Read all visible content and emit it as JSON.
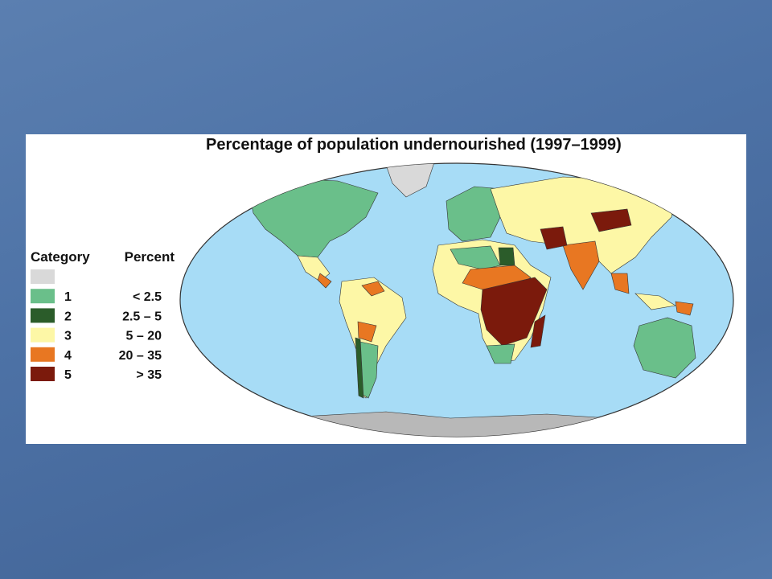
{
  "title": "Percentage of population undernourished (1997–1999)",
  "legend": {
    "headers": [
      "Category",
      "Percent"
    ],
    "items": [
      {
        "color": "#d9d9d9"
      },
      {
        "category": "1",
        "percent": "< 2.5",
        "color": "#6abf8a"
      },
      {
        "category": "2",
        "percent": "2.5 – 5",
        "color": "#2b5c2a"
      },
      {
        "category": "3",
        "percent": "5 – 20",
        "color": "#fdf7a6"
      },
      {
        "category": "4",
        "percent": "20 – 35",
        "color": "#e87722"
      },
      {
        "category": "5",
        "percent": "> 35",
        "color": "#7b1a0c"
      }
    ]
  }
}
